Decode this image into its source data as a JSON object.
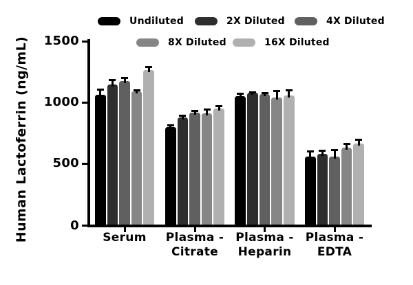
{
  "chart_data": {
    "type": "bar",
    "title": "",
    "ylabel": "Human Lactoferrin (ng/mL)",
    "xlabel": "",
    "ylim": [
      0,
      1500
    ],
    "yticks": [
      0,
      500,
      1000,
      1500
    ],
    "grid": false,
    "error_bars": true,
    "legend_position": "top",
    "background_color": "#ffffff",
    "axis_color": "#000000",
    "categories": [
      "Serum",
      "Plasma - Citrate",
      "Plasma - Heparin",
      "Plasma - EDTA"
    ],
    "category_label_lines": [
      [
        "Serum"
      ],
      [
        "Plasma -",
        "Citrate"
      ],
      [
        "Plasma -",
        "Heparin"
      ],
      [
        "Plasma -",
        "EDTA"
      ]
    ],
    "series": [
      {
        "name": "Undiluted",
        "color": "#000000",
        "values": [
          1060,
          800,
          1050,
          556
        ],
        "errors": [
          45,
          13,
          18,
          40
        ]
      },
      {
        "name": "2X Diluted",
        "color": "#2e2e2e",
        "values": [
          1145,
          878,
          1078,
          578
        ],
        "errors": [
          38,
          13,
          5,
          26
        ]
      },
      {
        "name": "4X Diluted",
        "color": "#606060",
        "values": [
          1175,
          915,
          1068,
          556
        ],
        "errors": [
          22,
          15,
          8,
          56
        ]
      },
      {
        "name": "8X Diluted",
        "color": "#868686",
        "values": [
          1090,
          908,
          1042,
          630
        ],
        "errors": [
          6,
          35,
          48,
          28
        ]
      },
      {
        "name": "16X Diluted",
        "color": "#b0b0b0",
        "values": [
          1265,
          948,
          1058,
          662
        ],
        "errors": [
          25,
          20,
          38,
          30
        ]
      }
    ],
    "legend_rows": [
      [
        "Undiluted",
        "2X Diluted",
        "4X Diluted"
      ],
      [
        "8X Diluted",
        "16X Diluted"
      ]
    ]
  }
}
